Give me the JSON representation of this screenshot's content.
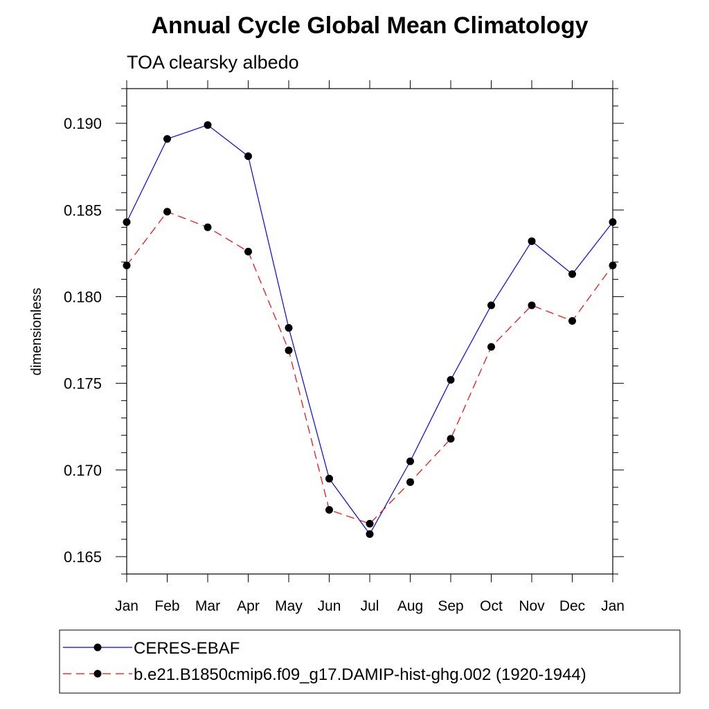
{
  "chart_data": {
    "type": "line",
    "title": "Annual Cycle Global Mean Climatology",
    "subtitle": "TOA clearsky albedo",
    "xlabel": "",
    "ylabel": "dimensionless",
    "categories": [
      "Jan",
      "Feb",
      "Mar",
      "Apr",
      "May",
      "Jun",
      "Jul",
      "Aug",
      "Sep",
      "Oct",
      "Nov",
      "Dec",
      "Jan"
    ],
    "ylim": [
      0.164,
      0.192
    ],
    "yticks": [
      "0.165",
      "0.170",
      "0.175",
      "0.180",
      "0.185",
      "0.190"
    ],
    "yticks_values": [
      0.165,
      0.17,
      0.175,
      0.18,
      0.185,
      0.19
    ],
    "legend_position": "bottom",
    "series": [
      {
        "name": "CERES-EBAF",
        "color": "#0000ff",
        "dashed": false,
        "values": [
          0.1843,
          0.1891,
          0.1899,
          0.1881,
          0.1782,
          0.1695,
          0.1663,
          0.1705,
          0.1752,
          0.1795,
          0.1832,
          0.1813,
          0.1843
        ]
      },
      {
        "name": "b.e21.B1850cmip6.f09_g17.DAMIP-hist-ghg.002 (1920-1944)",
        "color": "#ff0000",
        "dashed": true,
        "values": [
          0.1818,
          0.1849,
          0.184,
          0.1826,
          0.1769,
          0.1677,
          0.1669,
          0.1693,
          0.1718,
          0.1771,
          0.1795,
          0.1786,
          0.1818
        ]
      }
    ]
  }
}
